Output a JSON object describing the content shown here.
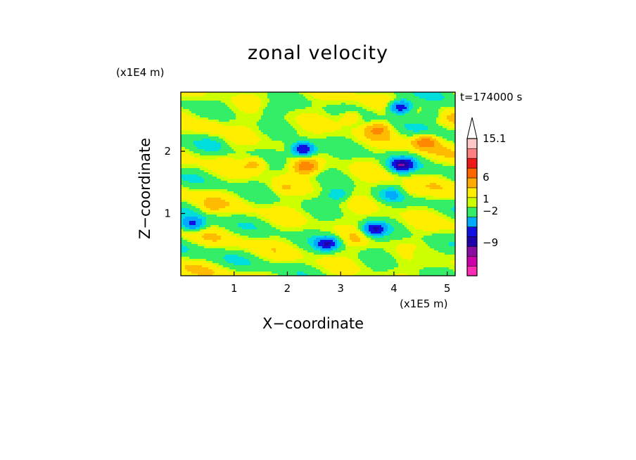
{
  "chart_data": {
    "type": "heatmap",
    "title": "zonal velocity",
    "xlabel": "X−coordinate",
    "ylabel": "Z−coordinate",
    "x_unit": "(x1E5 m)",
    "y_unit": "(x1E4 m)",
    "time_label": "t=174000 s",
    "xlim": [
      0,
      5.15
    ],
    "ylim": [
      0,
      2.95
    ],
    "x_ticks": [
      "1",
      "2",
      "3",
      "4",
      "5"
    ],
    "x_tick_values": [
      1,
      2,
      3,
      4,
      5
    ],
    "y_ticks": [
      "1",
      "2"
    ],
    "y_tick_values": [
      1,
      2
    ],
    "colorbar": {
      "labels": [
        "15.1",
        "6",
        "1",
        "−2",
        "−9"
      ],
      "label_values": [
        15.1,
        6,
        1,
        -2,
        -9
      ],
      "colors": [
        "#ff2db4",
        "#cc00aa",
        "#8a0ca0",
        "#2000a8",
        "#1010e0",
        "#00aaff",
        "#33ee66",
        "#ccff00",
        "#ffee00",
        "#ffaa00",
        "#ff6600",
        "#ee1a1a",
        "#ff8080",
        "#ffc8c8"
      ],
      "top_extension": "#ffffff"
    },
    "features": [
      {
        "x": 2.3,
        "z": 2.03,
        "value": -6
      },
      {
        "x": 4.12,
        "z": 2.71,
        "value": -6
      },
      {
        "x": 4.15,
        "z": 1.78,
        "value": -6
      },
      {
        "x": 2.75,
        "z": 0.52,
        "value": -5
      },
      {
        "x": 3.64,
        "z": 0.75,
        "value": -5
      },
      {
        "x": 0.22,
        "z": 0.82,
        "value": -4
      },
      {
        "x": 2.35,
        "z": 1.75,
        "value": 4
      },
      {
        "x": 4.6,
        "z": 2.15,
        "value": 4
      },
      {
        "x": 3.2,
        "z": 2.55,
        "value": 2
      },
      {
        "x": 1.4,
        "z": 1.8,
        "value": 2
      },
      {
        "x": 1.9,
        "z": 1.4,
        "value": 1
      },
      {
        "x": 4.3,
        "z": 1.35,
        "value": 1
      },
      {
        "x": 0.5,
        "z": 2.4,
        "value": 1
      },
      {
        "x": 3.7,
        "z": 2.35,
        "value": 3
      },
      {
        "x": 2.95,
        "z": 1.3,
        "value": -2
      },
      {
        "x": 3.95,
        "z": 1.3,
        "value": -2
      },
      {
        "x": 0.6,
        "z": 2.1,
        "value": -1
      },
      {
        "x": 4.7,
        "z": 2.6,
        "value": -2
      },
      {
        "x": 4.5,
        "z": 0.35,
        "value": -1
      },
      {
        "x": 2.2,
        "z": 0.9,
        "value": 0
      },
      {
        "x": 1.0,
        "z": 0.55,
        "value": 0
      },
      {
        "x": 0.55,
        "z": 1.1,
        "value": 1
      },
      {
        "x": 3.3,
        "z": 0.6,
        "value": 1
      },
      {
        "x": 1.7,
        "z": 2.65,
        "value": -1
      }
    ]
  }
}
